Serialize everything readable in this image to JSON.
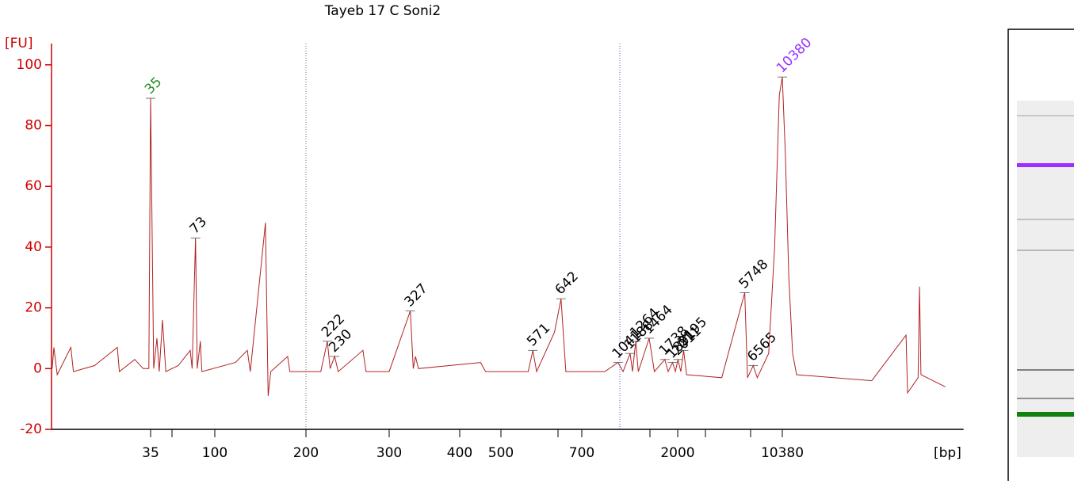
{
  "chart_data": {
    "type": "line",
    "title": "Tayeb 17 C Soni2",
    "y_label": "[FU]",
    "x_label": "[bp]",
    "ylim": [
      -20,
      107
    ],
    "yticks": [
      -20,
      0,
      20,
      40,
      60,
      80,
      100
    ],
    "xlim": [
      6.9,
      180000
    ],
    "xticks": [
      35,
      100,
      200,
      300,
      400,
      500,
      700,
      2000,
      10380
    ],
    "x": [
      7,
      7.2,
      7.6,
      9.5,
      9.9,
      14,
      20.3,
      21,
      27,
      31,
      34,
      35,
      36.8,
      38.8,
      40.3,
      42.5,
      44.9,
      55,
      66.9,
      69,
      73,
      75,
      79,
      81,
      117,
      128,
      131,
      147,
      150,
      153,
      174,
      177,
      215,
      222,
      225,
      230,
      234,
      264,
      268,
      300,
      327,
      331,
      334,
      338,
      448,
      460,
      560,
      571,
      580,
      625,
      642,
      655,
      900,
      1041,
      1100,
      1188,
      1220,
      1264,
      1300,
      1464,
      1550,
      1738,
      1800,
      1891,
      1950,
      2011,
      2100,
      2195,
      2300,
      4000,
      5748,
      6000,
      6565,
      7000,
      8380,
      9200,
      9900,
      10380,
      10900,
      11500,
      12200,
      13000,
      42400,
      72800,
      74500,
      88000,
      90000,
      92000,
      135000
    ],
    "series": [
      {
        "color": "#b22222",
        "values": [
          0,
          7,
          -2,
          7,
          -1,
          1,
          7,
          -1,
          3,
          0,
          0,
          89,
          0,
          10,
          -1,
          16,
          -1,
          1,
          6,
          0,
          43,
          0,
          9,
          -1,
          2,
          6,
          -1,
          48,
          -9,
          -1,
          4,
          -1,
          -1,
          9,
          0,
          4,
          -1,
          6,
          -1,
          -1,
          19,
          0,
          4,
          0,
          2,
          -1,
          -1,
          6,
          -1,
          12,
          23,
          -1,
          -1,
          2,
          -1,
          5,
          -1,
          9,
          -1,
          10,
          -1,
          3,
          -1,
          2,
          -1,
          3,
          -1,
          6,
          -2,
          -3,
          25,
          -3,
          1,
          -3,
          5,
          40,
          90,
          96,
          70,
          30,
          5,
          -2,
          -4,
          11,
          -8,
          -3,
          27,
          -2,
          -6
        ]
      }
    ],
    "peaks": {
      "x": [
        35,
        73,
        222,
        230,
        327,
        571,
        642,
        1041,
        1188,
        1264,
        1464,
        1738,
        1891,
        2011,
        2195,
        5748,
        6565,
        10380
      ],
      "y": [
        89,
        43,
        9,
        4,
        19,
        6,
        23,
        2,
        5,
        9,
        10,
        3,
        2,
        3,
        6,
        25,
        1,
        96
      ],
      "colors": [
        "#228b22",
        "#000000",
        "#000000",
        "#000000",
        "#000000",
        "#000000",
        "#000000",
        "#000000",
        "#000000",
        "#000000",
        "#000000",
        "#000000",
        "#000000",
        "#000000",
        "#000000",
        "#000000",
        "#000000",
        "#9b30ff"
      ]
    }
  }
}
